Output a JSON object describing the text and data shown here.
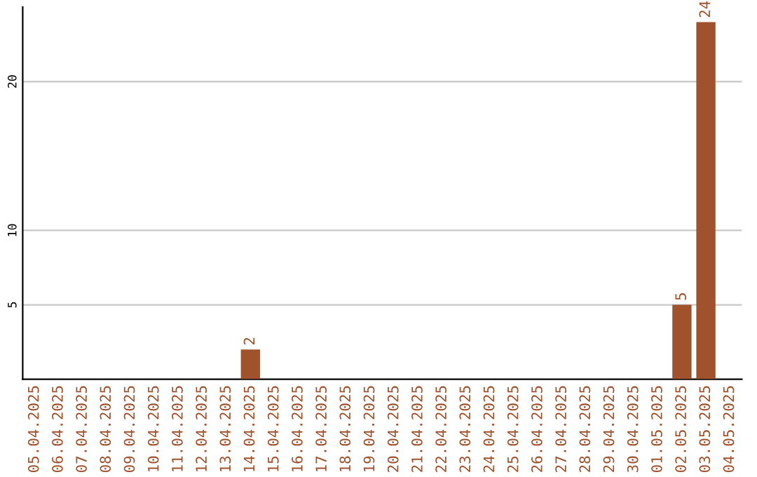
{
  "chart_data": {
    "type": "bar",
    "categories": [
      "05.04.2025",
      "06.04.2025",
      "07.04.2025",
      "08.04.2025",
      "09.04.2025",
      "10.04.2025",
      "11.04.2025",
      "12.04.2025",
      "13.04.2025",
      "14.04.2025",
      "15.04.2025",
      "16.04.2025",
      "17.04.2025",
      "18.04.2025",
      "19.04.2025",
      "20.04.2025",
      "21.04.2025",
      "22.04.2025",
      "23.04.2025",
      "24.04.2025",
      "25.04.2025",
      "26.04.2025",
      "27.04.2025",
      "28.04.2025",
      "29.04.2025",
      "30.04.2025",
      "01.05.2025",
      "02.05.2025",
      "03.05.2025",
      "04.05.2025"
    ],
    "values": [
      0,
      0,
      0,
      0,
      0,
      0,
      0,
      0,
      0,
      2,
      0,
      0,
      0,
      0,
      0,
      0,
      0,
      0,
      0,
      0,
      0,
      0,
      0,
      0,
      0,
      0,
      0,
      5,
      24,
      0
    ],
    "value_labels": [
      null,
      null,
      null,
      null,
      null,
      null,
      null,
      null,
      null,
      "2",
      null,
      null,
      null,
      null,
      null,
      null,
      null,
      null,
      null,
      null,
      null,
      null,
      null,
      null,
      null,
      null,
      null,
      "5",
      "24",
      null
    ],
    "color": "#a0522d",
    "ylim": [
      0,
      25
    ],
    "yticks": [
      5,
      10,
      20
    ],
    "grid": "y"
  }
}
